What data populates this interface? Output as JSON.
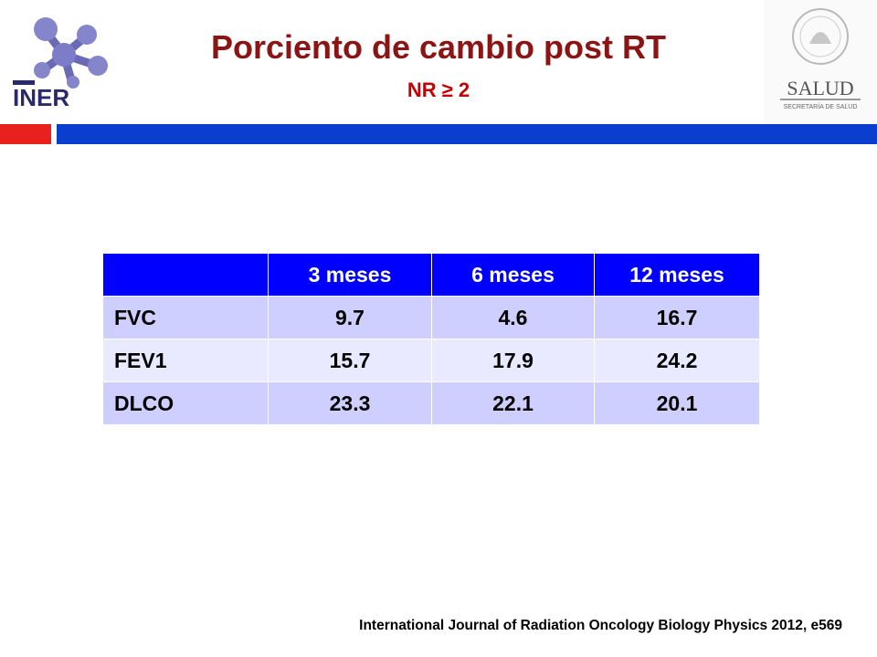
{
  "header": {
    "logo_left_text": "INER",
    "logo_right_text": "SALUD",
    "logo_right_subtext": "SECRETARÍA DE SALUD",
    "title": "Porciento de cambio post RT",
    "subtitle": "NR ≥ 2"
  },
  "colors": {
    "title": "#8b1414",
    "subtitle": "#c40000",
    "bar_red": "#e8201e",
    "bar_blue": "#0a3ecf",
    "table_header": "#0000ff",
    "table_row_odd": "#cfcfff",
    "table_row_even": "#e9e9ff"
  },
  "table": {
    "columns": [
      "",
      "3 meses",
      "6 meses",
      "12 meses"
    ],
    "rows": [
      {
        "label": "FVC",
        "values": [
          "9.7",
          "4.6",
          "16.7"
        ]
      },
      {
        "label": "FEV1",
        "values": [
          "15.7",
          "17.9",
          "24.2"
        ]
      },
      {
        "label": "DLCO",
        "values": [
          "23.3",
          "22.1",
          "20.1"
        ]
      }
    ]
  },
  "footer": {
    "citation": "International Journal of Radiation Oncology  Biology  Physics 2012, e569"
  }
}
